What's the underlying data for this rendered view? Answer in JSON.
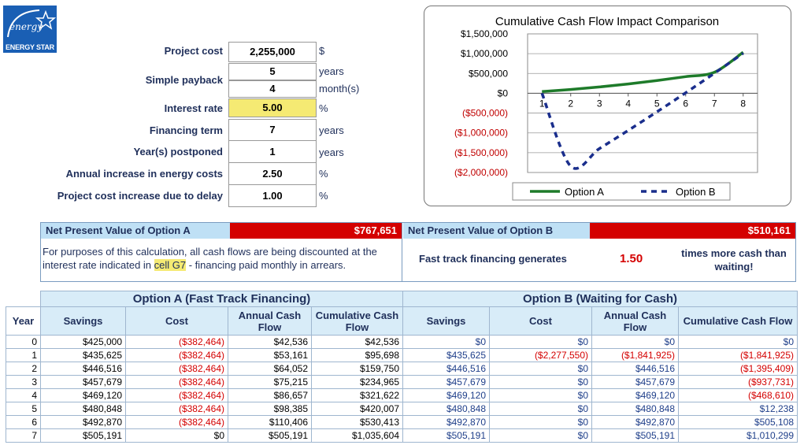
{
  "logo": {
    "script_text": "energy",
    "brand_text": "ENERGY STAR"
  },
  "inputs": [
    {
      "label": "Project cost",
      "value": "2,255,000",
      "unit": "$"
    },
    {
      "label": "Simple payback",
      "value": "5",
      "unit": "years",
      "value2": "4",
      "unit2": "month(s)"
    },
    {
      "label": "Interest rate",
      "value": "5.00",
      "unit": "%"
    },
    {
      "label": "Financing term",
      "value": "7",
      "unit": "years"
    },
    {
      "label": "Year(s) postponed",
      "value": "1",
      "unit": "years"
    },
    {
      "label": "Annual increase in energy costs",
      "value": "2.50",
      "unit": "%"
    },
    {
      "label": "Project cost increase due to delay",
      "value": "1.00",
      "unit": "%"
    }
  ],
  "chart_data": {
    "type": "line",
    "title": "Cumulative Cash Flow Impact Comparison",
    "x": [
      1,
      2,
      3,
      4,
      5,
      6,
      7,
      8
    ],
    "x_tick_labels": [
      "1",
      "2",
      "3",
      "4",
      "5",
      "6",
      "7",
      "8"
    ],
    "ylim": [
      -2000000,
      1500000
    ],
    "y_tick_values": [
      1500000,
      1000000,
      500000,
      0,
      -500000,
      -1000000,
      -1500000,
      -2000000
    ],
    "y_tick_labels": [
      "$1,500,000",
      "$1,000,000",
      "$500,000",
      "$0",
      "($500,000)",
      "($1,000,000)",
      "($1,500,000)",
      "($2,000,000)"
    ],
    "grid": true,
    "legend": "bottom",
    "series": [
      {
        "name": "Option A",
        "color": "#1e7b2a",
        "style": "solid",
        "values": [
          42536,
          95698,
          159750,
          234965,
          321622,
          420007,
          530413,
          1035604
        ]
      },
      {
        "name": "Option B",
        "color": "#1a2e8c",
        "style": "dashed",
        "values": [
          0,
          -1841925,
          -1395409,
          -937731,
          -468610,
          12238,
          505108,
          1010299
        ]
      }
    ]
  },
  "npv": {
    "a_label": "Net Present Value of Option A",
    "a_value": "$767,651",
    "b_label": "Net Present Value of Option B",
    "b_value": "$510,161",
    "note_pre": "For purposes of this calculation, all cash flows are being discounted at the interest rate indicated in ",
    "note_cell": "cell G7",
    "note_post": " - financing paid monthly in arrears.",
    "fast_label": "Fast track financing generates",
    "fast_value": "1.50",
    "fast_tail": "times more cash than waiting!"
  },
  "table": {
    "group_a": "Option A (Fast Track Financing)",
    "group_b": "Option B (Waiting for Cash)",
    "headers": [
      "Year",
      "Savings",
      "Cost",
      "Annual Cash Flow",
      "Cumulative Cash Flow",
      "Savings",
      "Cost",
      "Annual Cash Flow",
      "Cumulative Cash Flow"
    ],
    "rows": [
      [
        "0",
        "$425,000",
        "($382,464)",
        "$42,536",
        "$42,536",
        "$0",
        "$0",
        "$0",
        "$0"
      ],
      [
        "1",
        "$435,625",
        "($382,464)",
        "$53,161",
        "$95,698",
        "$435,625",
        "($2,277,550)",
        "($1,841,925)",
        "($1,841,925)"
      ],
      [
        "2",
        "$446,516",
        "($382,464)",
        "$64,052",
        "$159,750",
        "$446,516",
        "$0",
        "$446,516",
        "($1,395,409)"
      ],
      [
        "3",
        "$457,679",
        "($382,464)",
        "$75,215",
        "$234,965",
        "$457,679",
        "$0",
        "$457,679",
        "($937,731)"
      ],
      [
        "4",
        "$469,120",
        "($382,464)",
        "$86,657",
        "$321,622",
        "$469,120",
        "$0",
        "$469,120",
        "($468,610)"
      ],
      [
        "5",
        "$480,848",
        "($382,464)",
        "$98,385",
        "$420,007",
        "$480,848",
        "$0",
        "$480,848",
        "$12,238"
      ],
      [
        "6",
        "$492,870",
        "($382,464)",
        "$110,406",
        "$530,413",
        "$492,870",
        "$0",
        "$492,870",
        "$505,108"
      ],
      [
        "7",
        "$505,191",
        "$0",
        "$505,191",
        "$1,035,604",
        "$505,191",
        "$0",
        "$505,191",
        "$1,010,299"
      ]
    ]
  }
}
